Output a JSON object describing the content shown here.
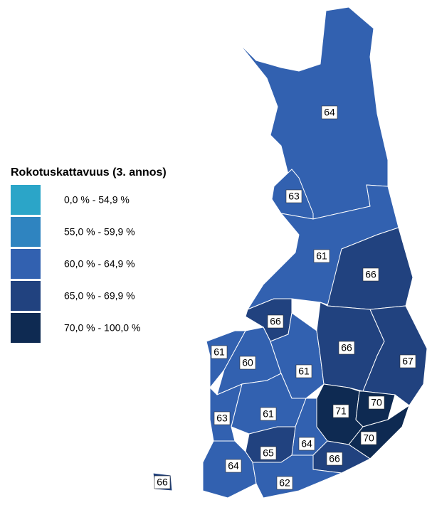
{
  "legend": {
    "title": "Rokotuskattavuus (3. annos)",
    "classes": [
      {
        "label": "0,0 % - 54,9 %",
        "color": "#2ba5c8",
        "from": 0,
        "to": 54.9
      },
      {
        "label": "55,0 % - 59,9 %",
        "color": "#2f84c0",
        "from": 55,
        "to": 59.9
      },
      {
        "label": "60,0 % - 64,9 %",
        "color": "#3261b0",
        "from": 60,
        "to": 64.9
      },
      {
        "label": "65,0 % - 69,9 %",
        "color": "#21427f",
        "from": 65,
        "to": 69.9
      },
      {
        "label": "70,0 % - 100,0 %",
        "color": "#0e2a52",
        "from": 70,
        "to": 100
      }
    ]
  },
  "regions": {
    "values": [
      64,
      63,
      61,
      66,
      66,
      61,
      60,
      61,
      66,
      67,
      71,
      70,
      70,
      63,
      61,
      64,
      65,
      66,
      64,
      62,
      66
    ]
  }
}
